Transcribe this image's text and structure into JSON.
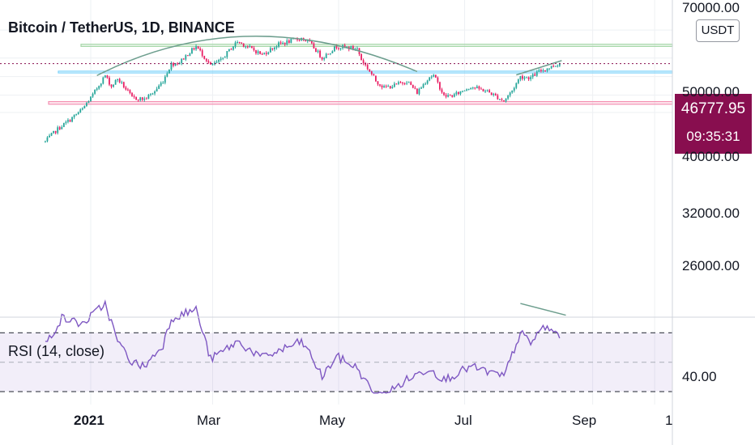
{
  "header": {
    "title": "Bitcoin / TetherUS, 1D, BINANCE",
    "currency_button": "USDT"
  },
  "price_tag": {
    "price": "46777.95",
    "countdown": "09:35:31",
    "color": "#880e4f"
  },
  "rsi": {
    "label": "RSI (14, close)",
    "level_label": "40.00"
  },
  "chart_data": {
    "type": "candlestick",
    "title": "Bitcoin / TetherUS, 1D, BINANCE",
    "y_scale": "log",
    "up_color": "#26a69a",
    "down_color": "#e91e63",
    "y_ticks": [
      "70000.00",
      "50000.00",
      "40000.00",
      "32000.00",
      "26000.00"
    ],
    "x_ticks": [
      {
        "label": "2021",
        "bold": true
      },
      {
        "label": "Mar",
        "bold": false
      },
      {
        "label": "May",
        "bold": false
      },
      {
        "label": "Jul",
        "bold": false
      },
      {
        "label": "Sep",
        "bold": false
      },
      {
        "label": "1",
        "bold": false
      }
    ],
    "close_anchors": [
      [
        "2020-12-10",
        18300
      ],
      [
        "2020-12-16",
        21300
      ],
      [
        "2020-12-22",
        23800
      ],
      [
        "2020-12-28",
        27000
      ],
      [
        "2021-01-02",
        32000
      ],
      [
        "2021-01-08",
        40500
      ],
      [
        "2021-01-11",
        35500
      ],
      [
        "2021-01-14",
        39000
      ],
      [
        "2021-01-21",
        31000
      ],
      [
        "2021-01-27",
        30500
      ],
      [
        "2021-02-01",
        33500
      ],
      [
        "2021-02-05",
        38000
      ],
      [
        "2021-02-09",
        46500
      ],
      [
        "2021-02-13",
        47500
      ],
      [
        "2021-02-21",
        57500
      ],
      [
        "2021-02-28",
        45500
      ],
      [
        "2021-03-05",
        48500
      ],
      [
        "2021-03-13",
        61000
      ],
      [
        "2021-03-17",
        58000
      ],
      [
        "2021-03-25",
        52000
      ],
      [
        "2021-04-02",
        59000
      ],
      [
        "2021-04-13",
        63500
      ],
      [
        "2021-04-17",
        60000
      ],
      [
        "2021-04-23",
        50000
      ],
      [
        "2021-04-30",
        57500
      ],
      [
        "2021-05-03",
        57000
      ],
      [
        "2021-05-10",
        56000
      ],
      [
        "2021-05-12",
        49000
      ],
      [
        "2021-05-19",
        38000
      ],
      [
        "2021-05-23",
        35000
      ],
      [
        "2021-05-28",
        36000
      ],
      [
        "2021-06-03",
        38000
      ],
      [
        "2021-06-08",
        33000
      ],
      [
        "2021-06-14",
        40000
      ],
      [
        "2021-06-16",
        40500
      ],
      [
        "2021-06-21",
        31600
      ],
      [
        "2021-06-26",
        32000
      ],
      [
        "2021-07-04",
        35500
      ],
      [
        "2021-07-12",
        33500
      ],
      [
        "2021-07-20",
        29800
      ],
      [
        "2021-07-24",
        33800
      ],
      [
        "2021-07-28",
        40000
      ],
      [
        "2021-08-02",
        39500
      ],
      [
        "2021-08-06",
        42500
      ],
      [
        "2021-08-12",
        45000
      ],
      [
        "2021-08-16",
        46778
      ]
    ],
    "rsi_anchors": [
      [
        "2020-12-10",
        62
      ],
      [
        "2020-12-18",
        80
      ],
      [
        "2020-12-28",
        76
      ],
      [
        "2021-01-08",
        90
      ],
      [
        "2021-01-14",
        64
      ],
      [
        "2021-01-21",
        50
      ],
      [
        "2021-01-27",
        47
      ],
      [
        "2021-02-05",
        62
      ],
      [
        "2021-02-09",
        80
      ],
      [
        "2021-02-21",
        86
      ],
      [
        "2021-02-28",
        52
      ],
      [
        "2021-03-13",
        64
      ],
      [
        "2021-03-25",
        53
      ],
      [
        "2021-04-13",
        64
      ],
      [
        "2021-04-17",
        56
      ],
      [
        "2021-04-23",
        40
      ],
      [
        "2021-04-30",
        54
      ],
      [
        "2021-05-10",
        46
      ],
      [
        "2021-05-19",
        26
      ],
      [
        "2021-05-28",
        32
      ],
      [
        "2021-06-03",
        38
      ],
      [
        "2021-06-14",
        46
      ],
      [
        "2021-06-21",
        38
      ],
      [
        "2021-07-04",
        47
      ],
      [
        "2021-07-20",
        40
      ],
      [
        "2021-07-28",
        70
      ],
      [
        "2021-08-02",
        63
      ],
      [
        "2021-08-08",
        74
      ],
      [
        "2021-08-16",
        69
      ]
    ],
    "rsi_bands": {
      "upper": 70,
      "middle": 50,
      "lower": 30
    },
    "zones": [
      {
        "low": 57500,
        "high": 59000,
        "color": "#a5d6a7"
      },
      {
        "low": 41800,
        "high": 42700,
        "color": "#81d4fa"
      },
      {
        "low": 28700,
        "high": 29600,
        "color": "#f48fb1"
      }
    ],
    "trend_lines": [
      {
        "color": "#6d9e8e",
        "points": [
          [
            "2021-01-04",
            40500
          ],
          [
            "2021-03-20",
            65000
          ],
          [
            "2021-06-08",
            42500
          ]
        ]
      },
      {
        "color": "#6d9e8e",
        "points": [
          [
            "2021-07-26",
            40800
          ],
          [
            "2021-08-17",
            48500
          ]
        ]
      }
    ],
    "rsi_trend_line": {
      "color": "#6d9e8e",
      "points": [
        [
          "2021-07-28",
          90
        ],
        [
          "2021-08-19",
          82
        ]
      ]
    }
  }
}
